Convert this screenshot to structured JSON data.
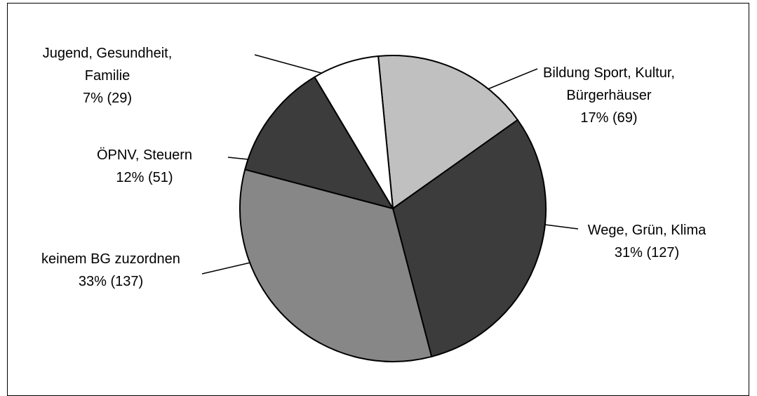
{
  "chart_data": {
    "type": "pie",
    "title": "",
    "legend": "none",
    "slices": [
      {
        "name": "Bildung Sport, Kultur, Bürgerhäuser",
        "label_lines": [
          "Bildung Sport, Kultur,",
          "Bürgerhäuser",
          "17% (69)"
        ],
        "percent": 17,
        "count": 69,
        "color": "#c0c0c0"
      },
      {
        "name": "Wege, Grün, Klima",
        "label_lines": [
          "Wege, Grün, Klima",
          "31% (127)"
        ],
        "percent": 31,
        "count": 127,
        "color": "#3c3c3c"
      },
      {
        "name": "keinem BG zuzordnen",
        "label_lines": [
          "keinem BG zuzordnen",
          "33% (137)"
        ],
        "percent": 33,
        "count": 137,
        "color": "#878787"
      },
      {
        "name": "ÖPNV, Steuern",
        "label_lines": [
          "ÖPNV, Steuern",
          "12% (51)"
        ],
        "percent": 12,
        "count": 51,
        "color": "#3c3c3c"
      },
      {
        "name": "Jugend, Gesundheit, Familie",
        "label_lines": [
          "Jugend, Gesundheit,",
          "Familie",
          "7% (29)"
        ],
        "percent": 7,
        "count": 29,
        "color": "#ffffff"
      }
    ]
  }
}
